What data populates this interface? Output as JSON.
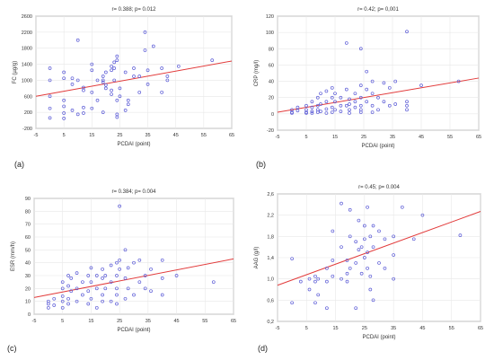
{
  "colors": {
    "points": "#5b5bd6",
    "trend": "#e23b3b",
    "grid": "#e8e8e8",
    "axis": "#9a9a9a",
    "text": "#333333"
  },
  "chart_data": [
    {
      "id": "a",
      "panel_label": "(a)",
      "type": "scatter",
      "title": "r= 0.388; p= 0.012",
      "xlabel": "PCDAI (point)",
      "ylabel": "FC (µg/g)",
      "xlim": [
        -5,
        65
      ],
      "ylim": [
        -200,
        2600
      ],
      "xticks": [
        -5,
        5,
        15,
        25,
        35,
        45,
        55,
        65
      ],
      "yticks": [
        -200,
        200,
        600,
        1000,
        1400,
        1800,
        2200,
        2600
      ],
      "xticklabels": [
        "-5",
        "5",
        "15",
        "25",
        "35",
        "45",
        "55",
        "65"
      ],
      "yticklabels": [
        "-200",
        "200",
        "600",
        "1000",
        "1400",
        "1800",
        "2200",
        "2600"
      ],
      "grid": true,
      "points": [
        [
          0,
          1300
        ],
        [
          0,
          1000
        ],
        [
          0,
          600
        ],
        [
          0,
          300
        ],
        [
          0,
          60
        ],
        [
          5,
          1200
        ],
        [
          5,
          1050
        ],
        [
          5,
          500
        ],
        [
          5,
          350
        ],
        [
          5,
          180
        ],
        [
          5,
          50
        ],
        [
          8,
          1050
        ],
        [
          8,
          900
        ],
        [
          8,
          250
        ],
        [
          10,
          2000
        ],
        [
          10,
          1000
        ],
        [
          10,
          150
        ],
        [
          12,
          820
        ],
        [
          12,
          750
        ],
        [
          12,
          320
        ],
        [
          12,
          180
        ],
        [
          15,
          1400
        ],
        [
          15,
          1250
        ],
        [
          15,
          700
        ],
        [
          15,
          300
        ],
        [
          17,
          1000
        ],
        [
          17,
          500
        ],
        [
          19,
          1100
        ],
        [
          19,
          1000
        ],
        [
          19,
          950
        ],
        [
          19,
          200
        ],
        [
          20,
          1200
        ],
        [
          20,
          880
        ],
        [
          20,
          800
        ],
        [
          22,
          1350
        ],
        [
          22,
          1250
        ],
        [
          22,
          750
        ],
        [
          22,
          650
        ],
        [
          23,
          1450
        ],
        [
          23,
          1300
        ],
        [
          23,
          1000
        ],
        [
          24,
          1600
        ],
        [
          24,
          1500
        ],
        [
          24,
          500
        ],
        [
          24,
          150
        ],
        [
          24,
          80
        ],
        [
          25,
          800
        ],
        [
          25,
          600
        ],
        [
          27,
          1200
        ],
        [
          27,
          250
        ],
        [
          28,
          500
        ],
        [
          28,
          400
        ],
        [
          30,
          1300
        ],
        [
          30,
          1100
        ],
        [
          32,
          1100
        ],
        [
          32,
          700
        ],
        [
          34,
          2200
        ],
        [
          34,
          1750
        ],
        [
          35,
          1250
        ],
        [
          35,
          900
        ],
        [
          37,
          1850
        ],
        [
          40,
          1300
        ],
        [
          40,
          700
        ],
        [
          42,
          1100
        ],
        [
          42,
          1000
        ],
        [
          46,
          1350
        ],
        [
          58,
          1500
        ]
      ],
      "trend": {
        "x": [
          -5,
          65
        ],
        "y": [
          600,
          1480
        ]
      }
    },
    {
      "id": "b",
      "panel_label": "(b)",
      "type": "scatter",
      "title": "r= 0.42; p= 0,001",
      "xlabel": "PCDAI (point)",
      "ylabel": "CRP (mg/l)",
      "xlim": [
        -5,
        65
      ],
      "ylim": [
        -20,
        120
      ],
      "xticks": [
        -5,
        5,
        15,
        25,
        35,
        45,
        55,
        65
      ],
      "yticks": [
        -20,
        0,
        20,
        40,
        60,
        80,
        100,
        120
      ],
      "xticklabels": [
        "-5",
        "5",
        "15",
        "25",
        "35",
        "45",
        "55",
        "65"
      ],
      "yticklabels": [
        "-20",
        "0",
        "20",
        "40",
        "60",
        "80",
        "100",
        "120"
      ],
      "grid": true,
      "points": [
        [
          0,
          5
        ],
        [
          0,
          2
        ],
        [
          0,
          1
        ],
        [
          2,
          8
        ],
        [
          2,
          4
        ],
        [
          5,
          10
        ],
        [
          5,
          5
        ],
        [
          5,
          2
        ],
        [
          5,
          1
        ],
        [
          7,
          15
        ],
        [
          7,
          8
        ],
        [
          7,
          3
        ],
        [
          7,
          1
        ],
        [
          9,
          20
        ],
        [
          9,
          10
        ],
        [
          9,
          5
        ],
        [
          9,
          2
        ],
        [
          10,
          25
        ],
        [
          10,
          12
        ],
        [
          10,
          3
        ],
        [
          12,
          28
        ],
        [
          12,
          15
        ],
        [
          12,
          6
        ],
        [
          12,
          1
        ],
        [
          14,
          32
        ],
        [
          14,
          20
        ],
        [
          14,
          8
        ],
        [
          14,
          2
        ],
        [
          15,
          25
        ],
        [
          15,
          15
        ],
        [
          15,
          5
        ],
        [
          17,
          20
        ],
        [
          17,
          10
        ],
        [
          17,
          3
        ],
        [
          19,
          87
        ],
        [
          19,
          30
        ],
        [
          19,
          10
        ],
        [
          20,
          18
        ],
        [
          20,
          12
        ],
        [
          20,
          5
        ],
        [
          20,
          1
        ],
        [
          22,
          25
        ],
        [
          22,
          15
        ],
        [
          22,
          8
        ],
        [
          24,
          80
        ],
        [
          24,
          35
        ],
        [
          24,
          20
        ],
        [
          24,
          10
        ],
        [
          24,
          5
        ],
        [
          24,
          2
        ],
        [
          26,
          52
        ],
        [
          26,
          30
        ],
        [
          26,
          15
        ],
        [
          28,
          40
        ],
        [
          28,
          25
        ],
        [
          28,
          10
        ],
        [
          28,
          2
        ],
        [
          30,
          20
        ],
        [
          30,
          5
        ],
        [
          32,
          38
        ],
        [
          32,
          15
        ],
        [
          34,
          32
        ],
        [
          34,
          10
        ],
        [
          36,
          40
        ],
        [
          36,
          12
        ],
        [
          40,
          101
        ],
        [
          40,
          15
        ],
        [
          40,
          10
        ],
        [
          40,
          5
        ],
        [
          45,
          35
        ],
        [
          58,
          40
        ]
      ],
      "trend": {
        "x": [
          -5,
          65
        ],
        "y": [
          2,
          44
        ]
      }
    },
    {
      "id": "c",
      "panel_label": "(c)",
      "type": "scatter",
      "title": "r= 0.384; p= 0.004",
      "xlabel": "PCDAI (point)",
      "ylabel": "ESR (mm/h)",
      "xlim": [
        -5,
        65
      ],
      "ylim": [
        0,
        90
      ],
      "xticks": [
        -5,
        5,
        15,
        25,
        35,
        45,
        55,
        65
      ],
      "yticks": [
        0,
        10,
        20,
        30,
        40,
        50,
        60,
        70,
        80,
        90
      ],
      "xticklabels": [
        "-5",
        "5",
        "15",
        "25",
        "35",
        "45",
        "55",
        "65"
      ],
      "yticklabels": [
        "0",
        "10",
        "20",
        "30",
        "40",
        "50",
        "60",
        "70",
        "80",
        "90"
      ],
      "grid": true,
      "points": [
        [
          0,
          10
        ],
        [
          0,
          8
        ],
        [
          0,
          5
        ],
        [
          2,
          12
        ],
        [
          2,
          7
        ],
        [
          5,
          25
        ],
        [
          5,
          20
        ],
        [
          5,
          14
        ],
        [
          5,
          10
        ],
        [
          5,
          5
        ],
        [
          7,
          30
        ],
        [
          7,
          22
        ],
        [
          7,
          12
        ],
        [
          7,
          8
        ],
        [
          8,
          28
        ],
        [
          8,
          18
        ],
        [
          10,
          32
        ],
        [
          10,
          20
        ],
        [
          10,
          10
        ],
        [
          12,
          25
        ],
        [
          12,
          15
        ],
        [
          14,
          30
        ],
        [
          14,
          18
        ],
        [
          14,
          8
        ],
        [
          15,
          36
        ],
        [
          15,
          25
        ],
        [
          15,
          12
        ],
        [
          17,
          30
        ],
        [
          17,
          20
        ],
        [
          17,
          5
        ],
        [
          19,
          35
        ],
        [
          19,
          28
        ],
        [
          19,
          15
        ],
        [
          19,
          10
        ],
        [
          20,
          30
        ],
        [
          20,
          20
        ],
        [
          22,
          38
        ],
        [
          22,
          25
        ],
        [
          22,
          10
        ],
        [
          24,
          40
        ],
        [
          24,
          30
        ],
        [
          24,
          20
        ],
        [
          24,
          15
        ],
        [
          24,
          8
        ],
        [
          25,
          84
        ],
        [
          25,
          42
        ],
        [
          25,
          35
        ],
        [
          27,
          50
        ],
        [
          27,
          28
        ],
        [
          27,
          12
        ],
        [
          28,
          36
        ],
        [
          28,
          20
        ],
        [
          30,
          40
        ],
        [
          30,
          15
        ],
        [
          32,
          42
        ],
        [
          32,
          25
        ],
        [
          34,
          30
        ],
        [
          34,
          20
        ],
        [
          36,
          35
        ],
        [
          36,
          18
        ],
        [
          40,
          42
        ],
        [
          40,
          28
        ],
        [
          40,
          15
        ],
        [
          45,
          30
        ],
        [
          58,
          25
        ]
      ],
      "trend": {
        "x": [
          -5,
          65
        ],
        "y": [
          13,
          43
        ]
      }
    },
    {
      "id": "d",
      "panel_label": "(d)",
      "type": "scatter",
      "title": "r= 0.45; p= 0.004",
      "xlabel": "PCDAI (point)",
      "ylabel": "AAG (g/l)",
      "xlim": [
        -5,
        65
      ],
      "ylim": [
        0.2,
        2.6
      ],
      "xticks": [
        -5,
        5,
        15,
        25,
        35,
        45,
        55,
        65
      ],
      "yticks": [
        0.2,
        0.6,
        1.0,
        1.4,
        1.8,
        2.2,
        2.6
      ],
      "xticklabels": [
        "-5",
        "5",
        "15",
        "25",
        "35",
        "45",
        "55",
        "65"
      ],
      "yticklabels": [
        "0,2",
        "0,6",
        "1,0",
        "1,4",
        "1,8",
        "2,2",
        "2,6"
      ],
      "grid": true,
      "points": [
        [
          0,
          1.38
        ],
        [
          0,
          0.55
        ],
        [
          3,
          0.95
        ],
        [
          6,
          1.0
        ],
        [
          6,
          0.8
        ],
        [
          8,
          1.05
        ],
        [
          8,
          0.95
        ],
        [
          8,
          0.55
        ],
        [
          9,
          1.0
        ],
        [
          9,
          0.7
        ],
        [
          12,
          1.2
        ],
        [
          12,
          0.95
        ],
        [
          12,
          0.45
        ],
        [
          14,
          1.9
        ],
        [
          14,
          1.35
        ],
        [
          14,
          1.05
        ],
        [
          17,
          2.42
        ],
        [
          17,
          1.6
        ],
        [
          17,
          1.0
        ],
        [
          19,
          1.35
        ],
        [
          19,
          1.1
        ],
        [
          19,
          0.95
        ],
        [
          20,
          2.3
        ],
        [
          20,
          1.8
        ],
        [
          20,
          1.2
        ],
        [
          22,
          1.7
        ],
        [
          22,
          1.3
        ],
        [
          22,
          0.45
        ],
        [
          23,
          2.1
        ],
        [
          23,
          1.55
        ],
        [
          24,
          1.6
        ],
        [
          24,
          1.1
        ],
        [
          25,
          2.0
        ],
        [
          25,
          1.75
        ],
        [
          25,
          1.4
        ],
        [
          26,
          2.35
        ],
        [
          26,
          1.5
        ],
        [
          26,
          1.2
        ],
        [
          27,
          1.8
        ],
        [
          27,
          1.05
        ],
        [
          27,
          0.8
        ],
        [
          28,
          2.0
        ],
        [
          28,
          1.6
        ],
        [
          28,
          0.6
        ],
        [
          30,
          1.9
        ],
        [
          30,
          1.3
        ],
        [
          32,
          1.75
        ],
        [
          32,
          1.2
        ],
        [
          35,
          1.8
        ],
        [
          35,
          1.45
        ],
        [
          35,
          1.0
        ],
        [
          38,
          2.35
        ],
        [
          42,
          1.75
        ],
        [
          45,
          2.2
        ],
        [
          58,
          1.82
        ]
      ],
      "trend": {
        "x": [
          -5,
          65
        ],
        "y": [
          0.88,
          2.27
        ]
      }
    }
  ]
}
